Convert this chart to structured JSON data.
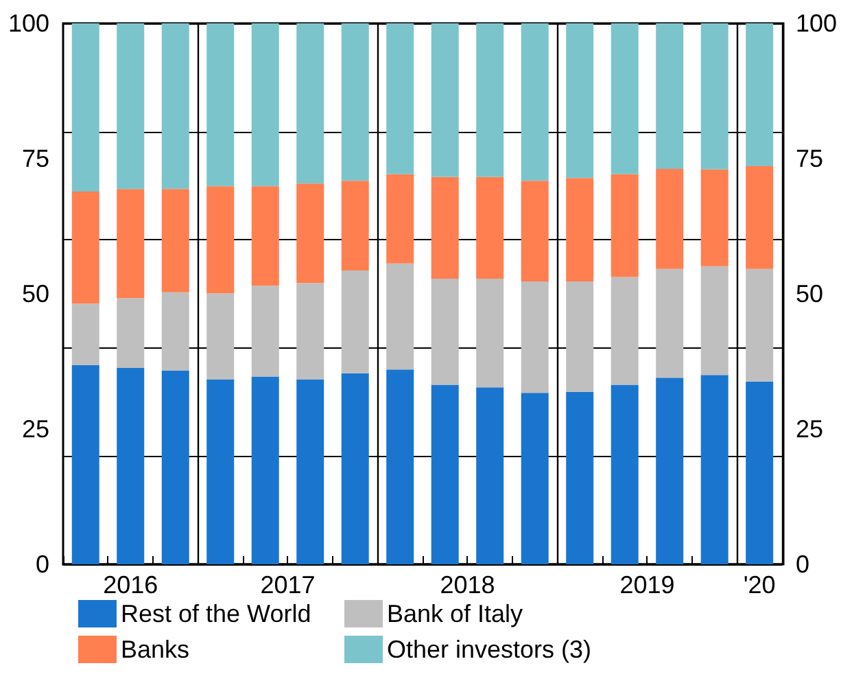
{
  "chart_data": {
    "type": "bar",
    "stacked": true,
    "categories": [
      null,
      "2016",
      null,
      null,
      "2017",
      null,
      null,
      null,
      "2018",
      null,
      null,
      null,
      null,
      "2019",
      null,
      "'20"
    ],
    "series": [
      {
        "name": "Rest of the World",
        "color": "#1a75cf",
        "values": [
          36.8,
          36.3,
          35.8,
          34.2,
          34.7,
          34.2,
          35.3,
          36.0,
          33.2,
          32.7,
          31.7,
          31.9,
          33.2,
          34.5,
          35.0,
          33.8
        ]
      },
      {
        "name": "Bank of Italy",
        "color": "#bfbfbf",
        "values": [
          11.4,
          12.9,
          14.5,
          15.9,
          16.8,
          17.8,
          19.0,
          19.6,
          19.6,
          20.1,
          20.6,
          20.4,
          19.9,
          20.1,
          20.1,
          20.8
        ]
      },
      {
        "name": "Banks",
        "color": "#ff7f50",
        "values": [
          20.7,
          20.2,
          19.1,
          19.8,
          18.4,
          18.4,
          16.6,
          16.5,
          18.8,
          18.8,
          18.6,
          19.1,
          19.0,
          18.5,
          17.9,
          19.0
        ]
      },
      {
        "name": "Other investors (3)",
        "color": "#7cc4cc",
        "values": [
          31.1,
          30.6,
          30.6,
          30.1,
          30.1,
          29.6,
          29.1,
          27.9,
          28.4,
          28.4,
          29.1,
          28.6,
          27.9,
          26.9,
          27.0,
          26.4
        ]
      }
    ],
    "ylim": [
      0,
      100
    ],
    "yticks": [
      0,
      25,
      50,
      75,
      100
    ],
    "y2lim": [
      0,
      100
    ],
    "y2ticks": [
      0,
      25,
      50,
      75,
      100
    ],
    "grid": true,
    "legend": "bottom"
  }
}
